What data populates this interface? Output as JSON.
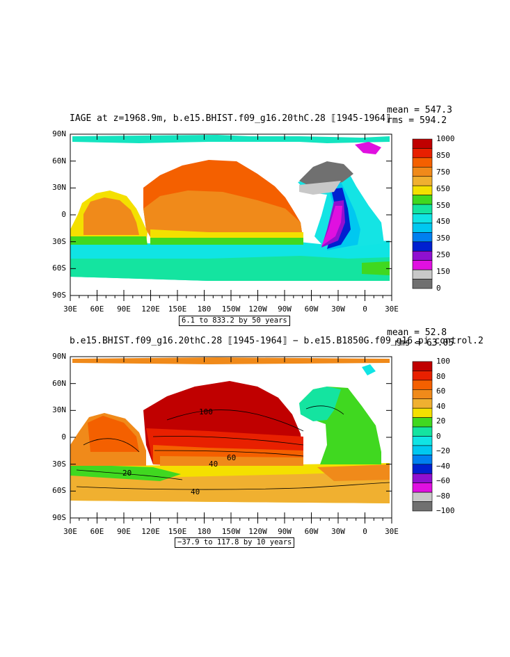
{
  "panels": [
    {
      "title": "IAGE at z=1968.9m, b.e15.BHIST.f09_g16.20thC.28 ⟦1945-1964⟧",
      "mean_text": "mean = 547.3",
      "rms_text": "rms = 594.2",
      "range_text": "6.1 to 833.2 by 50 years",
      "lat_labels": [
        "90N",
        "60N",
        "30N",
        "0",
        "30S",
        "60S",
        "90S"
      ],
      "lon_labels": [
        "30E",
        "60E",
        "90E",
        "120E",
        "150E",
        "180",
        "150W",
        "120W",
        "90W",
        "60W",
        "30W",
        "0",
        "30E"
      ],
      "colorbar_labels": [
        "1000",
        "850",
        "750",
        "650",
        "550",
        "450",
        "350",
        "250",
        "150",
        "0"
      ],
      "colorbar_colors": [
        "#c00000",
        "#e82000",
        "#f46000",
        "#f08a1a",
        "#f0b030",
        "#f4e000",
        "#40d820",
        "#14e4a0",
        "#10e4e4",
        "#00c8f0",
        "#0080f0",
        "#0020d0",
        "#9010d0",
        "#e010e0",
        "#c8c8c8",
        "#707070"
      ],
      "contour_labels": []
    },
    {
      "title": "b.e15.BHIST.f09_g16.20thC.28 ⟦1945-1964⟧ − b.e15.B1850G.f09_g16.pi_control.2",
      "mean_text": "mean = 52.8",
      "rms_text": "rms = 63.05",
      "range_text": "−37.9 to 117.8 by 10 years",
      "lat_labels": [
        "90N",
        "60N",
        "30N",
        "0",
        "30S",
        "60S",
        "90S"
      ],
      "lon_labels": [
        "30E",
        "60E",
        "90E",
        "120E",
        "150E",
        "180",
        "150W",
        "120W",
        "90W",
        "60W",
        "30W",
        "0",
        "30E"
      ],
      "colorbar_labels": [
        "100",
        "80",
        "60",
        "40",
        "20",
        "0",
        "−20",
        "−40",
        "−60",
        "−80",
        "−100"
      ],
      "colorbar_colors": [
        "#c00000",
        "#e82000",
        "#f46000",
        "#f08a1a",
        "#f0b030",
        "#f4e000",
        "#40d820",
        "#14e4a0",
        "#10e4e4",
        "#00c8f0",
        "#0080f0",
        "#0020d0",
        "#9010d0",
        "#e010e0",
        "#c8c8c8",
        "#707070"
      ],
      "contour_labels": [
        "100",
        "60",
        "40",
        "20",
        "40"
      ]
    }
  ]
}
